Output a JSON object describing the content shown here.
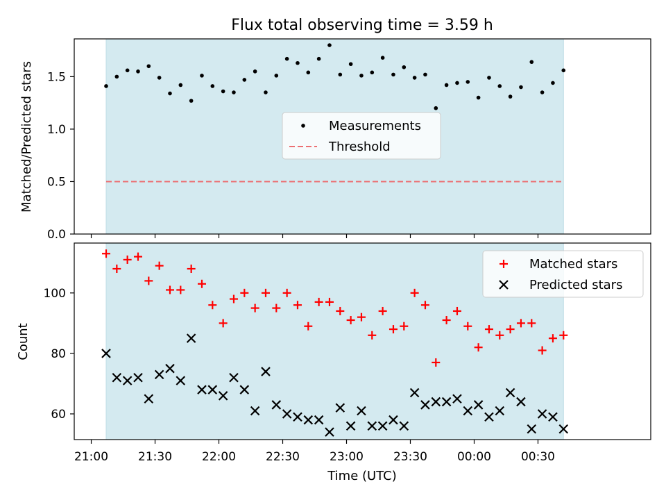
{
  "chart_data": [
    {
      "type": "scatter",
      "panel": "top",
      "title": "Flux total observing time = 3.59 h",
      "ylabel": "Matched/Predicted stars",
      "xlim": [
        -8,
        263
      ],
      "ylim": [
        0,
        1.86
      ],
      "yticks": [
        0.0,
        0.5,
        1.0,
        1.5
      ],
      "ytick_labels": [
        "0.0",
        "0.5",
        "1.0",
        "1.5"
      ],
      "observing_window_minutes": [
        7,
        222
      ],
      "threshold": 0.5,
      "legend_location": "center",
      "legend": [
        "Measurements",
        "Threshold"
      ],
      "series": [
        {
          "name": "Measurements",
          "x": [
            7,
            12,
            17,
            22,
            27,
            32,
            37,
            42,
            47,
            52,
            57,
            62,
            67,
            72,
            77,
            82,
            87,
            92,
            97,
            102,
            107,
            112,
            117,
            122,
            127,
            132,
            137,
            142,
            147,
            152,
            157,
            162,
            167,
            172,
            177,
            182,
            187,
            192,
            197,
            202,
            207,
            212,
            217,
            222
          ],
          "values": [
            1.41,
            1.5,
            1.56,
            1.55,
            1.6,
            1.49,
            1.34,
            1.42,
            1.27,
            1.51,
            1.41,
            1.36,
            1.35,
            1.47,
            1.55,
            1.35,
            1.51,
            1.67,
            1.63,
            1.54,
            1.67,
            1.8,
            1.52,
            1.62,
            1.51,
            1.54,
            1.68,
            1.52,
            1.59,
            1.49,
            1.52,
            1.2,
            1.42,
            1.44,
            1.45,
            1.3,
            1.49,
            1.41,
            1.31,
            1.4,
            1.64,
            1.35,
            1.44,
            1.56
          ]
        }
      ]
    },
    {
      "type": "scatter",
      "panel": "bottom",
      "xlabel": "Time (UTC)",
      "ylabel": "Count",
      "xlim": [
        -8,
        263
      ],
      "ylim": [
        51.5,
        116.5
      ],
      "yticks": [
        60,
        80,
        100
      ],
      "ytick_labels": [
        "60",
        "80",
        "100"
      ],
      "xticks": [
        0,
        30,
        60,
        90,
        120,
        150,
        180,
        210
      ],
      "xtick_labels": [
        "21:00",
        "21:30",
        "22:00",
        "22:30",
        "23:00",
        "23:30",
        "00:00",
        "00:30"
      ],
      "observing_window_minutes": [
        7,
        222
      ],
      "legend_location": "top-right",
      "legend": [
        "Matched stars",
        "Predicted stars"
      ],
      "x": [
        7,
        12,
        17,
        22,
        27,
        32,
        37,
        42,
        47,
        52,
        57,
        62,
        67,
        72,
        77,
        82,
        87,
        92,
        97,
        102,
        107,
        112,
        117,
        122,
        127,
        132,
        137,
        142,
        147,
        152,
        157,
        162,
        167,
        172,
        177,
        182,
        187,
        192,
        197,
        202,
        207,
        212,
        217,
        222
      ],
      "series": [
        {
          "name": "Matched stars",
          "values": [
            113,
            108,
            111,
            112,
            104,
            109,
            101,
            101,
            108,
            103,
            96,
            90,
            98,
            100,
            95,
            100,
            95,
            100,
            96,
            89,
            97,
            97,
            94,
            91,
            92,
            86,
            94,
            88,
            89,
            100,
            96,
            77,
            91,
            94,
            89,
            82,
            88,
            86,
            88,
            90,
            90,
            81,
            85,
            86
          ]
        },
        {
          "name": "Predicted stars",
          "values": [
            80,
            72,
            71,
            72,
            65,
            73,
            75,
            71,
            85,
            68,
            68,
            66,
            72,
            68,
            61,
            74,
            63,
            60,
            59,
            58,
            58,
            54,
            62,
            56,
            61,
            56,
            56,
            58,
            56,
            67,
            63,
            64,
            64,
            65,
            61,
            63,
            59,
            61,
            67,
            64,
            55,
            60,
            59,
            55
          ]
        }
      ]
    }
  ],
  "colors": {
    "shade": "#d4eaf0",
    "measurement": "#000000",
    "threshold": "#ec6f72",
    "matched": "#ff0000",
    "predicted": "#000000"
  }
}
